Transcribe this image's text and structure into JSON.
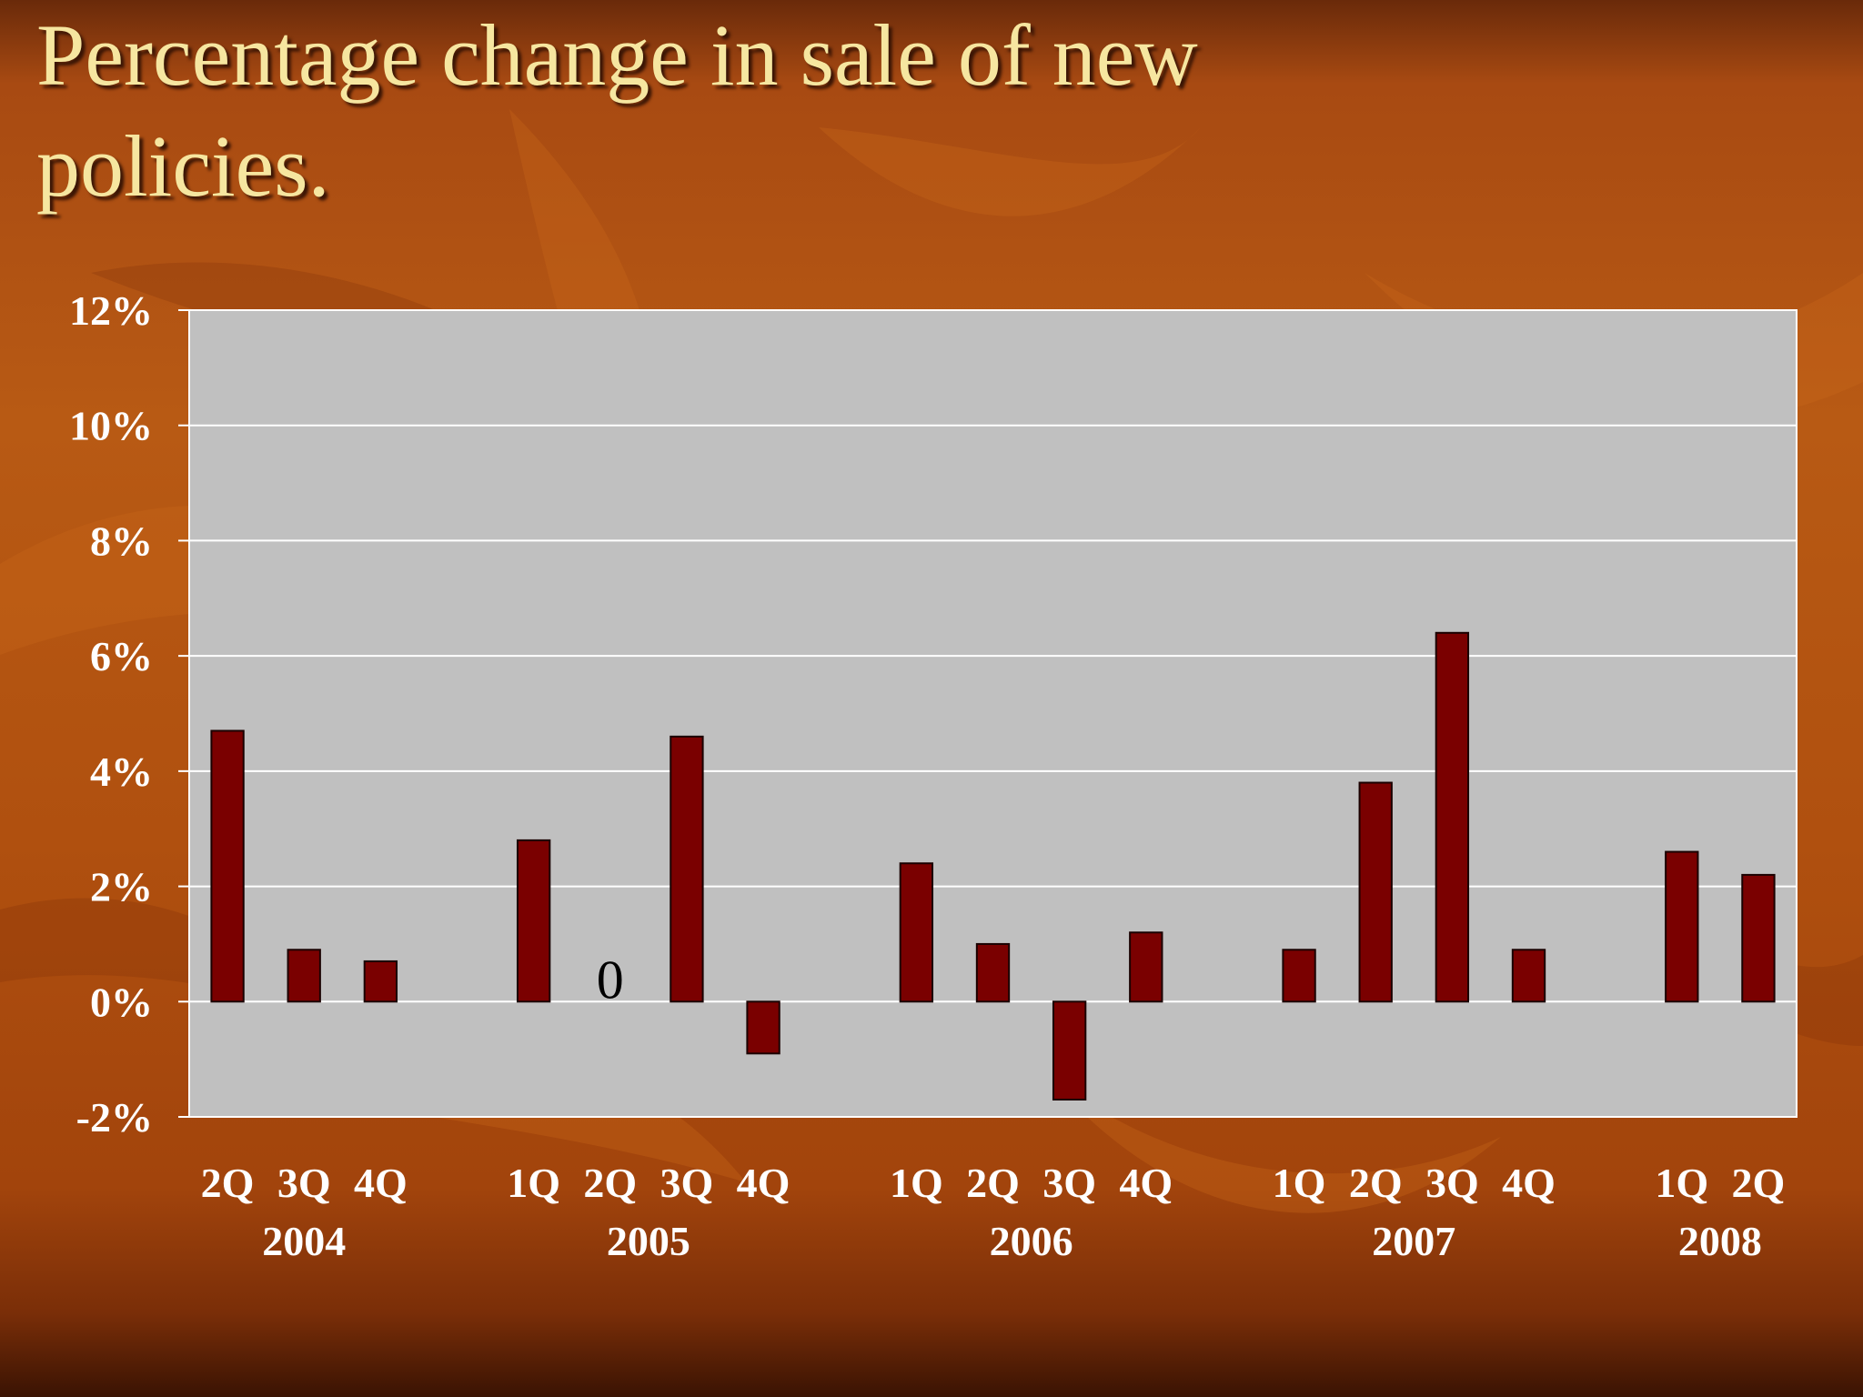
{
  "slide": {
    "title": "Percentage change in sale of new policies."
  },
  "colors": {
    "bar": "#7a0000",
    "plot_area": "#c0c0c0",
    "title_text": "#f6e6a0",
    "axis_text": "#ffffff"
  },
  "chart_data": {
    "type": "bar",
    "title": "Percentage change in sale of new policies.",
    "xlabel": "",
    "ylabel": "",
    "ylim": [
      -2,
      12
    ],
    "yticks": [
      "12%",
      "10%",
      "8%",
      "6%",
      "4%",
      "2%",
      "0%",
      "-2%"
    ],
    "grid": true,
    "legend": "none",
    "groups": [
      {
        "year": "2004",
        "quarters": [
          "2Q",
          "3Q",
          "4Q"
        ],
        "values": [
          4.7,
          0.9,
          0.7
        ]
      },
      {
        "year": "2005",
        "quarters": [
          "1Q",
          "2Q",
          "3Q",
          "4Q"
        ],
        "values": [
          2.8,
          0,
          4.6,
          -0.9
        ]
      },
      {
        "year": "2006",
        "quarters": [
          "1Q",
          "2Q",
          "3Q",
          "4Q"
        ],
        "values": [
          2.4,
          1.0,
          -1.7,
          1.2
        ]
      },
      {
        "year": "2007",
        "quarters": [
          "1Q",
          "2Q",
          "3Q",
          "4Q"
        ],
        "values": [
          0.9,
          3.8,
          6.4,
          0.9
        ]
      },
      {
        "year": "2008",
        "quarters": [
          "1Q",
          "2Q"
        ],
        "values": [
          2.6,
          2.2
        ]
      }
    ],
    "annotations": [
      {
        "text": "0",
        "group": "2005",
        "quarter": "2Q"
      }
    ]
  }
}
